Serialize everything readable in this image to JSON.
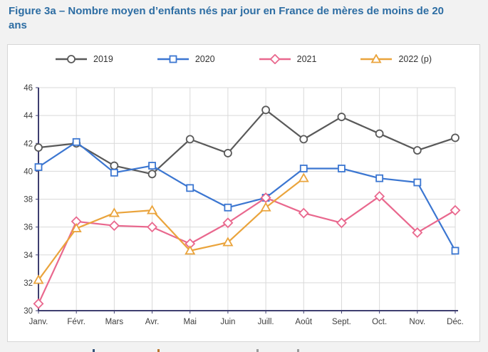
{
  "page": {
    "title": "Figure 3a – Nombre moyen d’enfants nés par jour en France de mères de moins de 20 ans",
    "title_color": "#2d6da3",
    "background_color": "#f2f2f2",
    "card_background": "#ffffff"
  },
  "chart_data": {
    "type": "line",
    "title": "Figure 3a – Nombre moyen d’enfants nés par jour en France de mères de moins de 20 ans",
    "categories": [
      "Janv.",
      "Févr.",
      "Mars",
      "Avr.",
      "Mai",
      "Juin",
      "Juill.",
      "Août",
      "Sept.",
      "Oct.",
      "Nov.",
      "Déc."
    ],
    "series": [
      {
        "name": "2019",
        "color": "#595959",
        "marker": "circle-marker",
        "values": [
          41.7,
          42.0,
          40.4,
          39.8,
          42.3,
          41.3,
          44.4,
          42.3,
          43.9,
          42.7,
          41.5,
          42.4
        ]
      },
      {
        "name": "2020",
        "color": "#3b76d1",
        "marker": "square-marker",
        "values": [
          40.3,
          42.1,
          39.9,
          40.4,
          38.8,
          37.4,
          38.1,
          40.2,
          40.2,
          39.5,
          39.2,
          34.3
        ]
      },
      {
        "name": "2021",
        "color": "#e9688e",
        "marker": "diamond-marker",
        "values": [
          30.5,
          36.4,
          36.1,
          36.0,
          34.8,
          36.3,
          38.1,
          37.0,
          36.3,
          38.2,
          35.6,
          37.2
        ]
      },
      {
        "name": "2022 (p)",
        "color": "#eaa43c",
        "marker": "triangle-marker",
        "values": [
          32.2,
          35.9,
          37.0,
          37.2,
          34.3,
          34.9,
          37.4,
          39.5,
          null,
          null,
          null,
          null
        ]
      }
    ],
    "xlabel": "",
    "ylabel": "",
    "ylim": [
      30,
      46
    ],
    "ytick_step": 2,
    "grid": true,
    "legend_position": "top",
    "axis_color": "#3e3e70",
    "grid_color": "#d9d9d9",
    "tick_label_color": "#3d3d3d"
  }
}
